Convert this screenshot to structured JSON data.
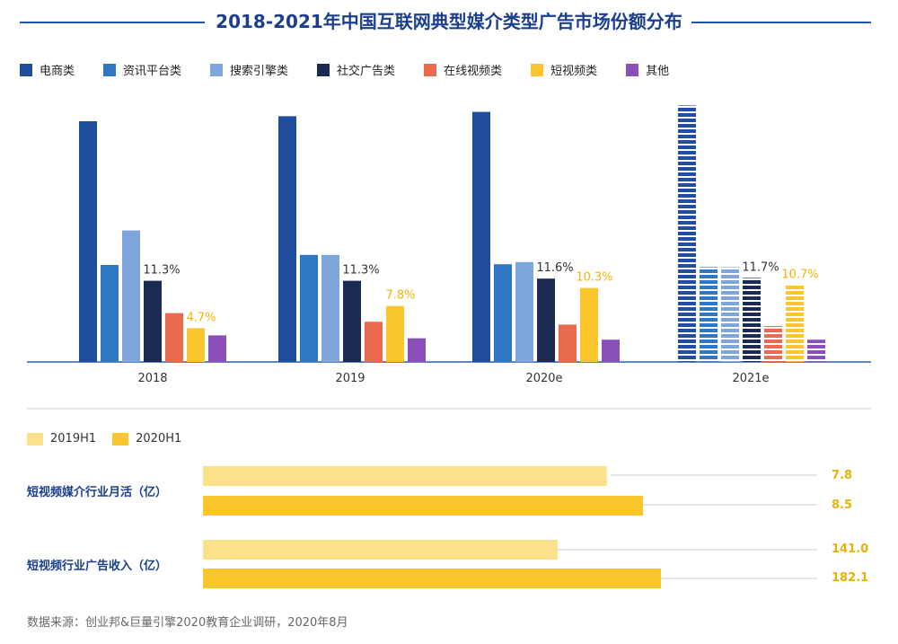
{
  "title": "2018-2021年中国互联网典型媒介类型广告市场份额分布",
  "source": "数据来源：创业邦&巨量引擎2020教育企业调研，2020年8月",
  "chart_data": [
    {
      "type": "bar",
      "categories": [
        "2018",
        "2019",
        "2020e",
        "2021e"
      ],
      "hatched_categories": [
        "2021e"
      ],
      "series": [
        {
          "name": "电商类",
          "color": "#1f4e9e",
          "values": [
            33.5,
            34.2,
            34.8,
            35.7
          ]
        },
        {
          "name": "资讯平台类",
          "color": "#2f77c2",
          "values": [
            13.5,
            14.9,
            13.6,
            13.2
          ]
        },
        {
          "name": "搜索引擎类",
          "color": "#7ea6dd",
          "values": [
            18.3,
            14.9,
            13.9,
            13.2
          ]
        },
        {
          "name": "社交广告类",
          "color": "#1b2a52",
          "values": [
            11.3,
            11.3,
            11.6,
            11.7
          ]
        },
        {
          "name": "在线视频类",
          "color": "#ea6a4f",
          "values": [
            6.8,
            5.6,
            5.2,
            5.0
          ]
        },
        {
          "name": "短视频类",
          "color": "#fbc52c",
          "values": [
            4.7,
            7.8,
            10.3,
            10.7
          ]
        },
        {
          "name": "其他",
          "color": "#8a4fb8",
          "values": [
            3.7,
            3.3,
            3.1,
            3.1
          ]
        }
      ],
      "data_labels": [
        {
          "series": "社交广告类",
          "labels": [
            "11.3%",
            "11.3%",
            "11.6%",
            "11.7%"
          ],
          "color": "#333333"
        },
        {
          "series": "短视频类",
          "labels": [
            "4.7%",
            "7.8%",
            "10.3%",
            "10.7%"
          ],
          "color": "#f4b400"
        }
      ],
      "ylim": [
        0,
        36
      ],
      "grid": false,
      "legend": "top-left"
    },
    {
      "type": "bar",
      "orientation": "horizontal",
      "categories": [
        "短视频媒介行业月活（亿）",
        "短视频行业广告收入（亿）"
      ],
      "series": [
        {
          "name": "2019H1",
          "color": "#fde08a",
          "values": [
            7.8,
            141.0
          ],
          "labels": [
            "7.8",
            "141.0"
          ]
        },
        {
          "name": "2020H1",
          "color": "#fbc52c",
          "values": [
            8.5,
            182.1
          ],
          "labels": [
            "8.5",
            "182.1"
          ]
        }
      ],
      "legend": "top-left"
    }
  ]
}
